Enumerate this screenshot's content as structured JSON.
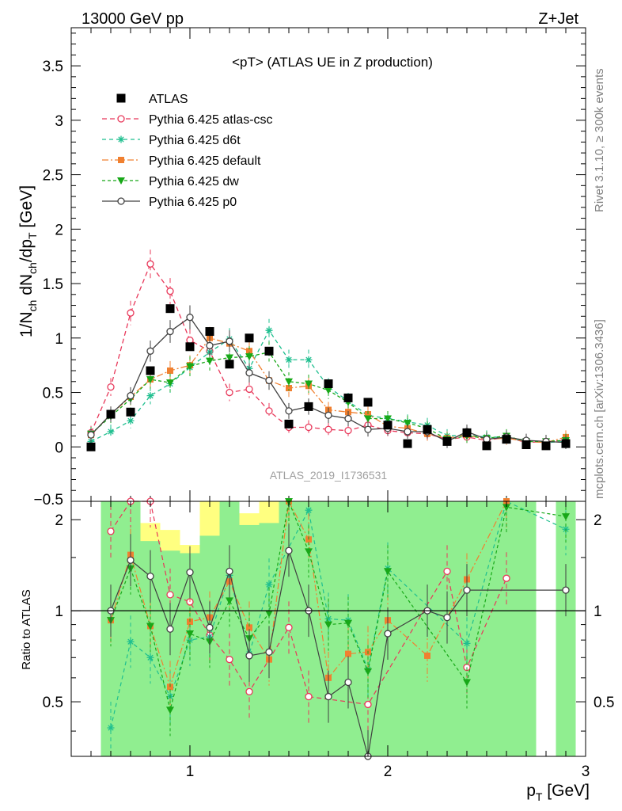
{
  "header": {
    "left": "13000 GeV pp",
    "right": "Z+Jet"
  },
  "side_text": {
    "rivet": "Rivet 3.1.10, ≥ 300k events",
    "mcplots": "mcplots.cern.ch [arXiv:1306.3436]"
  },
  "chart_data": [
    {
      "type": "line",
      "title": "<pT> (ATLAS UE in Z production)",
      "watermark": "ATLAS_2019_I1736531",
      "xlabel": "p_T [GeV]",
      "ylabel": "1/N_ch dN_ch/dp_T [GeV]",
      "xlim": [
        0.4,
        3.0
      ],
      "ylim": [
        -0.5,
        3.85
      ],
      "x_ticks": [
        1,
        2,
        3
      ],
      "y_ticks": [
        0,
        0.5,
        1,
        1.5,
        2,
        2.5,
        3,
        3.5
      ],
      "y_tick_labels": [
        "0",
        "0.5",
        "1",
        "1.5",
        "2",
        "2.5",
        "3",
        "3.5"
      ],
      "x_tick_labels": [
        "1",
        "2",
        "3"
      ],
      "legend_position": "top-left",
      "data_series": {
        "name": "ATLAS",
        "color": "#000000",
        "x": [
          0.5,
          0.6,
          0.7,
          0.8,
          0.9,
          1.0,
          1.1,
          1.2,
          1.3,
          1.4,
          1.5,
          1.6,
          1.7,
          1.8,
          1.9,
          2.0,
          2.1,
          2.2,
          2.3,
          2.4,
          2.5,
          2.6,
          2.7,
          2.8,
          2.9
        ],
        "y": [
          0.0,
          0.3,
          0.32,
          0.7,
          1.27,
          0.92,
          1.06,
          0.76,
          1.0,
          0.88,
          0.21,
          0.37,
          0.58,
          0.45,
          0.41,
          0.2,
          0.03,
          0.16,
          0.05,
          0.13,
          0.01,
          0.07,
          0.02,
          0.01,
          0.03
        ]
      },
      "series": [
        {
          "name": "Pythia 6.425 atlas-csc",
          "color": "#e8385a",
          "marker": "open-circle",
          "dash": "6,4",
          "x": [
            0.5,
            0.6,
            0.7,
            0.8,
            0.9,
            1.0,
            1.1,
            1.2,
            1.3,
            1.4,
            1.5,
            1.6,
            1.7,
            1.8,
            1.9,
            2.0,
            2.1,
            2.2,
            2.3,
            2.4,
            2.5,
            2.6,
            2.7,
            2.8,
            2.9
          ],
          "y": [
            0.13,
            0.55,
            1.23,
            1.68,
            1.43,
            0.98,
            0.88,
            0.5,
            0.53,
            0.33,
            0.18,
            0.18,
            0.16,
            0.15,
            0.2,
            0.15,
            0.13,
            0.12,
            0.07,
            0.09,
            0.06,
            0.09,
            0.04,
            0.05,
            0.06
          ]
        },
        {
          "name": "Pythia 6.425 d6t",
          "color": "#1fbf8f",
          "marker": "star",
          "dash": "5,4",
          "x": [
            0.5,
            0.6,
            0.7,
            0.8,
            0.9,
            1.0,
            1.1,
            1.2,
            1.3,
            1.4,
            1.5,
            1.6,
            1.7,
            1.8,
            1.9,
            2.0,
            2.1,
            2.2,
            2.3,
            2.4,
            2.5,
            2.6,
            2.7,
            2.8,
            2.9
          ],
          "y": [
            0.05,
            0.14,
            0.24,
            0.47,
            0.58,
            0.73,
            0.87,
            0.99,
            0.72,
            1.07,
            0.8,
            0.8,
            0.55,
            0.42,
            0.29,
            0.26,
            0.23,
            0.2,
            0.1,
            0.11,
            0.09,
            0.09,
            0.05,
            0.04,
            0.05
          ]
        },
        {
          "name": "Pythia 6.425 default",
          "color": "#f08030",
          "marker": "square",
          "dash": "8,3,2,3",
          "x": [
            0.5,
            0.6,
            0.7,
            0.8,
            0.9,
            1.0,
            1.1,
            1.2,
            1.3,
            1.4,
            1.5,
            1.6,
            1.7,
            1.8,
            1.9,
            2.0,
            2.1,
            2.2,
            2.3,
            2.4,
            2.5,
            2.6,
            2.7,
            2.8,
            2.9
          ],
          "y": [
            0.11,
            0.3,
            0.46,
            0.62,
            0.7,
            0.75,
            1.0,
            0.95,
            0.88,
            0.61,
            0.54,
            0.56,
            0.34,
            0.32,
            0.3,
            0.19,
            0.17,
            0.12,
            0.08,
            0.11,
            0.07,
            0.08,
            0.05,
            0.04,
            0.09
          ]
        },
        {
          "name": "Pythia 6.425 dw",
          "color": "#18a818",
          "marker": "triangle-down",
          "dash": "4,3",
          "x": [
            0.5,
            0.6,
            0.7,
            0.8,
            0.9,
            1.0,
            1.1,
            1.2,
            1.3,
            1.4,
            1.5,
            1.6,
            1.7,
            1.8,
            1.9,
            2.0,
            2.1,
            2.2,
            2.3,
            2.4,
            2.5,
            2.6,
            2.7,
            2.8,
            2.9
          ],
          "y": [
            0.12,
            0.28,
            0.44,
            0.62,
            0.59,
            0.74,
            0.79,
            0.82,
            0.83,
            0.87,
            0.6,
            0.58,
            0.52,
            0.41,
            0.26,
            0.26,
            0.22,
            0.17,
            0.07,
            0.1,
            0.08,
            0.1,
            0.05,
            0.05,
            0.06
          ]
        },
        {
          "name": "Pythia 6.425 p0",
          "color": "#404040",
          "marker": "open-circle",
          "dash": "",
          "x": [
            0.5,
            0.6,
            0.7,
            0.8,
            0.9,
            1.0,
            1.1,
            1.2,
            1.3,
            1.4,
            1.5,
            1.6,
            1.7,
            1.8,
            1.9,
            2.0,
            2.1,
            2.2,
            2.3,
            2.4,
            2.5,
            2.6,
            2.7,
            2.8,
            2.9
          ],
          "y": [
            0.11,
            0.3,
            0.47,
            0.88,
            1.06,
            1.19,
            0.93,
            0.97,
            0.68,
            0.61,
            0.33,
            0.37,
            0.29,
            0.26,
            0.16,
            0.17,
            0.14,
            0.14,
            0.05,
            0.14,
            0.07,
            0.09,
            0.06,
            0.05,
            0.04
          ]
        }
      ]
    },
    {
      "type": "line",
      "title": "",
      "xlabel": "p_T [GeV]",
      "ylabel": "Ratio to ATLAS",
      "xlim": [
        0.4,
        3.0
      ],
      "ylim": [
        0.33,
        2.3
      ],
      "y_scale": "log",
      "y_ticks": [
        0.5,
        1,
        2
      ],
      "y_tick_labels": [
        "0.5",
        "1",
        "2"
      ],
      "x_ticks": [
        1,
        2,
        3
      ],
      "x_tick_labels": [
        "1",
        "2",
        "3"
      ],
      "reference_line": 1,
      "uncertainty_bands": {
        "inner_color": "#90ee90",
        "outer_color": "#ffff80",
        "x_edges": [
          0.55,
          0.65,
          0.75,
          0.85,
          0.95,
          1.05,
          1.15,
          1.25,
          1.35,
          1.45,
          1.55,
          1.65,
          1.75,
          1.85,
          1.95,
          2.05,
          2.15,
          2.25,
          2.35,
          2.45,
          2.55,
          2.65,
          2.75,
          2.85,
          2.95
        ],
        "inner_lo": [
          0.33,
          0.33,
          0.33,
          0.33,
          0.33,
          0.33,
          0.33,
          0.33,
          0.33,
          0.33,
          0.33,
          0.33,
          0.33,
          0.33,
          0.33,
          0.33,
          0.33,
          0.33,
          0.33,
          0.33,
          0.33,
          0.33,
          0.33,
          0.33
        ],
        "inner_hi": [
          2.3,
          2.3,
          1.7,
          1.58,
          1.55,
          1.77,
          2.3,
          1.92,
          1.95,
          2.3,
          2.3,
          2.3,
          2.3,
          2.3,
          2.3,
          2.3,
          2.3,
          2.3,
          2.3,
          2.3,
          2.3,
          2.3,
          2.3,
          2.3
        ],
        "outer_lo": [
          0.33,
          0.33,
          0.33,
          0.33,
          0.33,
          0.33,
          0.33,
          0.33,
          0.33,
          0.33,
          0.33,
          0.33,
          0.33,
          0.33,
          0.33,
          0.33,
          0.33,
          0.33,
          0.33,
          0.33,
          0.33,
          0.33,
          0.33,
          0.33
        ],
        "outer_hi": [
          2.3,
          2.3,
          1.95,
          1.85,
          1.65,
          2.3,
          2.3,
          2.1,
          2.3,
          2.3,
          2.3,
          2.3,
          2.3,
          2.3,
          2.3,
          2.3,
          2.3,
          2.3,
          2.3,
          2.3,
          2.3,
          2.3,
          2.3,
          2.3
        ],
        "gap_ranges": [
          [
            2.75,
            2.85
          ]
        ]
      },
      "series": [
        {
          "name": "Pythia 6.425 atlas-csc",
          "x": [
            0.6,
            0.7,
            0.8,
            0.9,
            1.0,
            1.1,
            1.2,
            1.3,
            1.5,
            1.6,
            1.9,
            2.3,
            2.4,
            2.6
          ],
          "y": [
            1.83,
            2.3,
            2.3,
            1.13,
            1.07,
            0.83,
            0.69,
            0.54,
            0.88,
            0.52,
            0.49,
            1.35,
            0.65,
            1.28
          ]
        },
        {
          "name": "Pythia 6.425 d6t",
          "x": [
            0.6,
            0.7,
            0.8,
            0.9,
            1.0,
            1.1,
            1.2,
            1.3,
            1.4,
            1.6,
            1.7,
            1.8,
            1.9,
            2.0,
            2.4,
            2.6,
            2.9
          ],
          "y": [
            0.41,
            0.79,
            0.7,
            0.52,
            0.8,
            0.82,
            1.31,
            0.72,
            1.22,
            2.15,
            0.94,
            0.93,
            0.64,
            1.38,
            0.78,
            2.3,
            1.86
          ]
        },
        {
          "name": "Pythia 6.425 default",
          "x": [
            0.6,
            0.7,
            0.8,
            0.9,
            1.0,
            1.1,
            1.2,
            1.3,
            1.4,
            1.5,
            1.6,
            1.7,
            1.8,
            1.9,
            2.0,
            2.2,
            2.4,
            2.6
          ],
          "y": [
            0.93,
            1.53,
            0.89,
            0.56,
            0.92,
            0.95,
            1.25,
            0.88,
            0.69,
            2.3,
            1.72,
            0.6,
            0.72,
            0.73,
            0.93,
            0.71,
            1.27,
            2.3
          ]
        },
        {
          "name": "Pythia 6.425 dw",
          "x": [
            0.6,
            0.7,
            0.8,
            0.9,
            1.0,
            1.1,
            1.2,
            1.3,
            1.4,
            1.5,
            1.6,
            1.7,
            1.8,
            1.9,
            2.0,
            2.4,
            2.6,
            2.9
          ],
          "y": [
            0.93,
            1.38,
            0.89,
            0.47,
            0.84,
            0.79,
            1.08,
            0.81,
            0.98,
            2.3,
            1.57,
            0.9,
            0.91,
            0.63,
            1.35,
            0.58,
            2.2,
            2.05
          ]
        },
        {
          "name": "Pythia 6.425 p0",
          "x": [
            0.6,
            0.7,
            0.8,
            0.9,
            1.0,
            1.1,
            1.2,
            1.3,
            1.4,
            1.5,
            1.6,
            1.7,
            1.8,
            1.9,
            2.0,
            2.2,
            2.3,
            2.4,
            2.9
          ],
          "y": [
            1.0,
            1.47,
            1.3,
            0.87,
            1.34,
            0.88,
            1.35,
            0.71,
            0.73,
            1.58,
            1.0,
            0.52,
            0.58,
            0.33,
            0.84,
            1.0,
            0.95,
            1.17,
            1.17
          ]
        }
      ]
    }
  ]
}
